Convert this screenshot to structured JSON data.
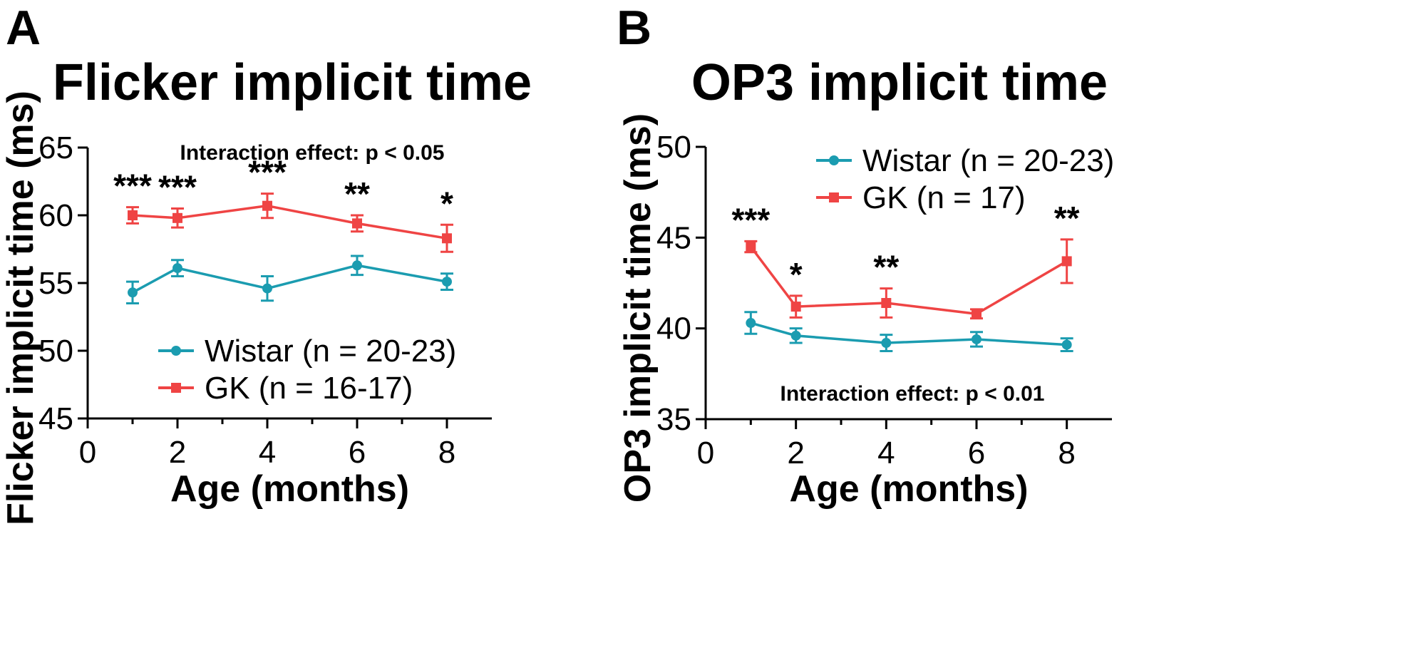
{
  "chart_data": [
    {
      "type": "line",
      "panel": "A",
      "title": "Flicker implicit time",
      "xlabel": "Age (months)",
      "ylabel": "Flicker implicit time (ms)",
      "xlim": [
        0,
        9
      ],
      "ylim": [
        45,
        65
      ],
      "xticks": [
        0,
        2,
        4,
        6,
        8
      ],
      "yticks": [
        45,
        50,
        55,
        60,
        65
      ],
      "annotation": "Interaction effect: p < 0.05",
      "legend_position": "bottom",
      "series": [
        {
          "name": "Wistar (n = 20-23)",
          "color": "#1b9cb0",
          "marker": "circle",
          "x": [
            1,
            2,
            4,
            6,
            8
          ],
          "y": [
            54.3,
            56.1,
            54.6,
            56.3,
            55.1
          ],
          "err": [
            0.8,
            0.6,
            0.9,
            0.7,
            0.6
          ]
        },
        {
          "name": "GK (n = 16-17)",
          "color": "#ef4444",
          "marker": "square",
          "x": [
            1,
            2,
            4,
            6,
            8
          ],
          "y": [
            60.0,
            59.8,
            60.7,
            59.4,
            58.3
          ],
          "err": [
            0.6,
            0.7,
            0.9,
            0.6,
            1.0
          ]
        }
      ],
      "significance": [
        {
          "x": 1,
          "label": "***"
        },
        {
          "x": 2,
          "label": "***"
        },
        {
          "x": 4,
          "label": "***"
        },
        {
          "x": 6,
          "label": "**"
        },
        {
          "x": 8,
          "label": "*"
        }
      ]
    },
    {
      "type": "line",
      "panel": "B",
      "title": "OP3 implicit time",
      "xlabel": "Age (months)",
      "ylabel": "OP3 implicit time (ms)",
      "xlim": [
        0,
        9
      ],
      "ylim": [
        35,
        50
      ],
      "xticks": [
        0,
        2,
        4,
        6,
        8
      ],
      "yticks": [
        35,
        40,
        45,
        50
      ],
      "annotation": "Interaction effect: p < 0.01",
      "legend_position": "top-right",
      "series": [
        {
          "name": "Wistar (n = 20-23)",
          "color": "#1b9cb0",
          "marker": "circle",
          "x": [
            1,
            2,
            4,
            6,
            8
          ],
          "y": [
            40.3,
            39.6,
            39.2,
            39.4,
            39.1
          ],
          "err": [
            0.6,
            0.4,
            0.45,
            0.4,
            0.35
          ]
        },
        {
          "name": "GK (n = 17)",
          "color": "#ef4444",
          "marker": "square",
          "x": [
            1,
            2,
            4,
            6,
            8
          ],
          "y": [
            44.5,
            41.2,
            41.4,
            40.8,
            43.7
          ],
          "err": [
            0.3,
            0.6,
            0.8,
            0.25,
            1.2
          ]
        }
      ],
      "significance": [
        {
          "x": 1,
          "label": "***"
        },
        {
          "x": 2,
          "label": "*"
        },
        {
          "x": 4,
          "label": "**"
        },
        {
          "x": 8,
          "label": "**"
        }
      ]
    }
  ]
}
